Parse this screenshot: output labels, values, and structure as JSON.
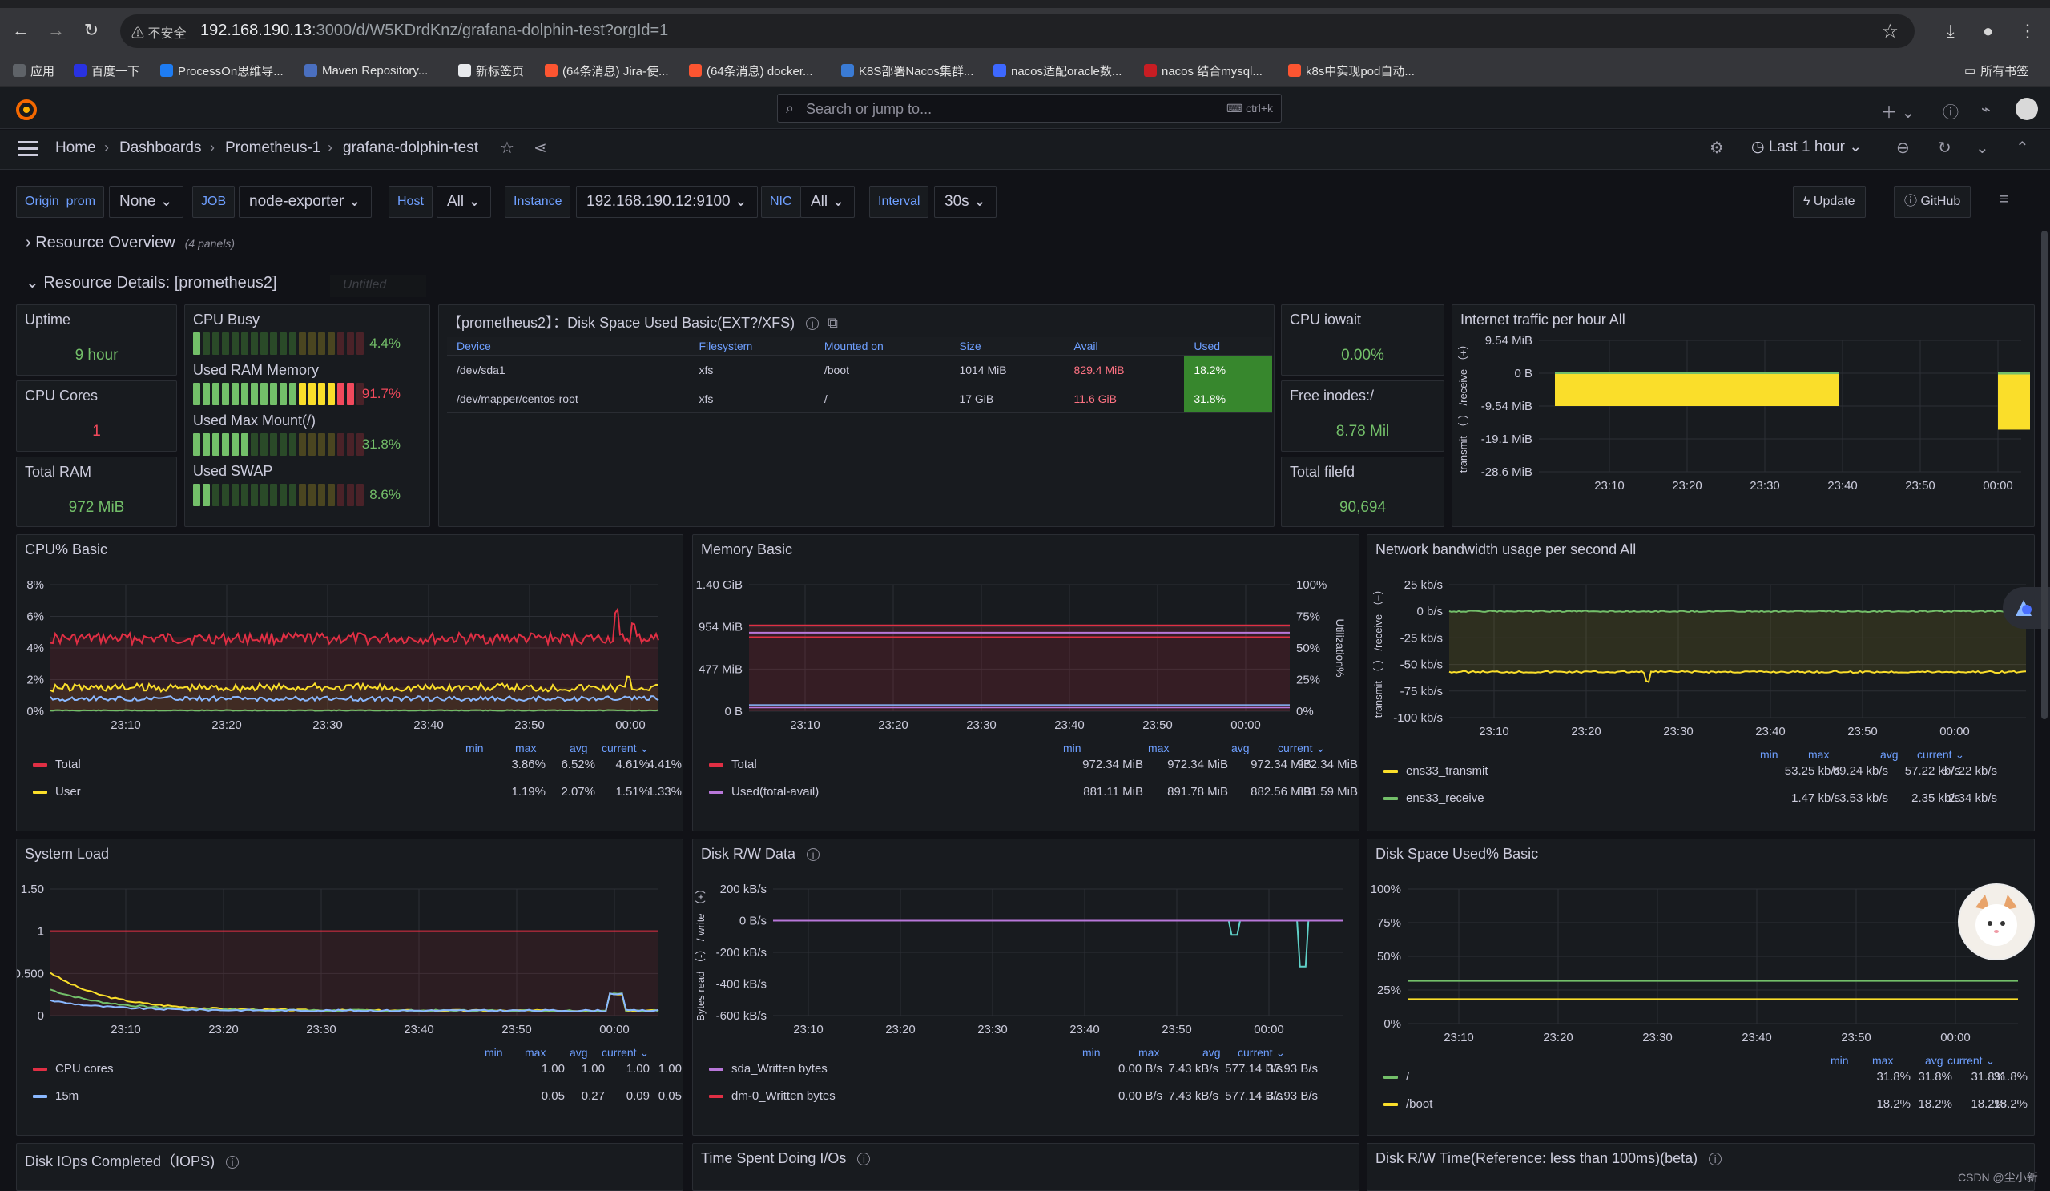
{
  "browser": {
    "insecure_label": "不安全",
    "url_host": "192.168.190.13",
    "url_rest": ":3000/d/W5KDrdKnz/grafana-dolphin-test?orgId=1",
    "bookmarks": [
      {
        "label": "应用",
        "icon": "apps-grid-icon",
        "color": "#5f6368"
      },
      {
        "label": "百度一下",
        "icon": "baidu-icon",
        "color": "#2932e1"
      },
      {
        "label": "ProcessOn思维导...",
        "icon": "processon-icon",
        "color": "#1e7cf2"
      },
      {
        "label": "Maven Repository...",
        "icon": "maven-icon",
        "color": "#4a6fbf"
      },
      {
        "label": "新标签页",
        "icon": "globe-icon",
        "color": "#e8eaed"
      },
      {
        "label": "(64条消息) Jira-使...",
        "icon": "csdn-icon",
        "color": "#fc5531"
      },
      {
        "label": "(64条消息) docker...",
        "icon": "csdn-icon",
        "color": "#fc5531"
      },
      {
        "label": "K8S部署Nacos集群...",
        "icon": "k8s-icon",
        "color": "#3a7bd5"
      },
      {
        "label": "nacos适配oracle数...",
        "icon": "diamond-icon",
        "color": "#3d68ff"
      },
      {
        "label": "nacos 结合mysql...",
        "icon": "51cto-icon",
        "color": "#c71d23"
      },
      {
        "label": "k8s中实现pod自动...",
        "icon": "csdn-icon",
        "color": "#fc5531"
      }
    ],
    "all_bookmarks": "所有书签"
  },
  "grafana": {
    "search_placeholder": "Search or jump to...",
    "search_shortcut": "ctrl+k",
    "breadcrumb": [
      "Home",
      "Dashboards",
      "Prometheus-1",
      "grafana-dolphin-test"
    ],
    "time_range": "Last 1 hour",
    "variables": [
      {
        "label": "Origin_prom",
        "value": "None"
      },
      {
        "label": "JOB",
        "value": "node-exporter"
      },
      {
        "label": "Host",
        "value": "All"
      },
      {
        "label": "Instance",
        "value": "192.168.190.12:9100"
      },
      {
        "label": "NIC",
        "value": "All"
      },
      {
        "label": "Interval",
        "value": "30s"
      }
    ],
    "update_btn": "Update",
    "github_btn": "GitHub",
    "row1_title": "Resource Overview",
    "row1_count": "(4 panels)",
    "row2_title": "Resource Details: [prometheus2]",
    "row2_ghost": "Untitled"
  },
  "panels": {
    "uptime": {
      "title": "Uptime",
      "value": "9 hour"
    },
    "cpu_cores": {
      "title": "CPU Cores",
      "value": "1"
    },
    "total_ram": {
      "title": "Total RAM",
      "value": "972 MiB"
    },
    "gauges": [
      {
        "label": "CPU Busy",
        "value": "4.4%",
        "fill": 0.044,
        "color": "#73bf69"
      },
      {
        "label": "Used RAM Memory",
        "value": "91.7%",
        "fill": 0.917,
        "color": "#f2495c"
      },
      {
        "label": "Used Max Mount(/)",
        "value": "31.8%",
        "fill": 0.318,
        "color": "#73bf69"
      },
      {
        "label": "Used SWAP",
        "value": "8.6%",
        "fill": 0.086,
        "color": "#73bf69"
      }
    ],
    "disk_table": {
      "title": "【prometheus2】：Disk Space Used Basic(EXT?/XFS)",
      "columns": [
        "Device",
        "Filesystem",
        "Mounted on",
        "Size",
        "Avail",
        "Used"
      ],
      "rows": [
        [
          "/dev/sda1",
          "xfs",
          "/boot",
          "1014 MiB",
          "829.4 MiB",
          "18.2%"
        ],
        [
          "/dev/mapper/centos-root",
          "xfs",
          "/",
          "17 GiB",
          "11.6 GiB",
          "31.8%"
        ]
      ]
    },
    "cpu_iowait": {
      "title": "CPU iowait",
      "value": "0.00%"
    },
    "free_inodes": {
      "title": "Free inodes:/",
      "value": "8.78 Mil"
    },
    "total_filefd": {
      "title": "Total filefd",
      "value": "90,694"
    },
    "internet_traffic": {
      "title": "Internet traffic per hour All"
    },
    "cpu_basic": {
      "title": "CPU% Basic"
    },
    "memory_basic": {
      "title": "Memory Basic"
    },
    "network_bw": {
      "title": "Network bandwidth usage per second All"
    },
    "system_load": {
      "title": "System Load"
    },
    "disk_rw": {
      "title": "Disk R/W Data"
    },
    "disk_space_used": {
      "title": "Disk Space Used% Basic"
    },
    "disk_iops": {
      "title": "Disk IOps Completed（IOPS)"
    },
    "time_io": {
      "title": "Time Spent Doing I/Os"
    },
    "disk_rw_time": {
      "title": "Disk R/W Time(Reference: less than 100ms)(beta)"
    },
    "legend_cols": [
      "min",
      "max",
      "avg",
      "current"
    ]
  },
  "chart_data": [
    {
      "type": "bar",
      "panel": "Internet traffic per hour All",
      "ylabel": "transmit （-） /receive （+）",
      "y_ticks": [
        "9.54 MiB",
        "0 B",
        "-9.54 MiB",
        "-19.1 MiB",
        "-28.6 MiB"
      ],
      "x_ticks": [
        "23:10",
        "23:20",
        "23:30",
        "23:40",
        "23:50",
        "00:00"
      ],
      "series": [
        {
          "color": "#fade2a",
          "bars": [
            {
              "x_start": "23:10",
              "x_end": "23:40",
              "value": -9.54
            },
            {
              "x_start": "00:00",
              "x_end": "00:00",
              "value": -16.4
            }
          ]
        }
      ]
    },
    {
      "type": "line",
      "panel": "CPU% Basic",
      "y_ticks": [
        "8%",
        "6%",
        "4%",
        "2%",
        "0%"
      ],
      "x_ticks": [
        "23:10",
        "23:20",
        "23:30",
        "23:40",
        "23:50",
        "00:00"
      ],
      "series": [
        {
          "name": "Total",
          "color": "#e02f44",
          "min": "3.86%",
          "max": "6.52%",
          "avg": "4.61%",
          "current": "4.41%"
        },
        {
          "name": "User",
          "color": "#fade2a",
          "min": "1.19%",
          "max": "2.07%",
          "avg": "1.51%",
          "current": "1.33%"
        }
      ]
    },
    {
      "type": "line",
      "panel": "Memory Basic",
      "y_ticks": [
        "1.40 GiB",
        "954 MiB",
        "477 MiB",
        "0 B"
      ],
      "y2_ticks": [
        "100%",
        "75%",
        "50%",
        "25%",
        "0%"
      ],
      "y2label": "Utilization%",
      "x_ticks": [
        "23:10",
        "23:20",
        "23:30",
        "23:40",
        "23:50",
        "00:00"
      ],
      "series": [
        {
          "name": "Total",
          "color": "#e02f44",
          "min": "972.34 MiB",
          "max": "972.34 MiB",
          "avg": "972.34 MiB",
          "current": "972.34 MiB"
        },
        {
          "name": "Used(total-avail)",
          "color": "#b877d9",
          "min": "881.11 MiB",
          "max": "891.78 MiB",
          "avg": "882.56 MiB",
          "current": "891.59 MiB"
        }
      ]
    },
    {
      "type": "line",
      "panel": "Network bandwidth usage per second All",
      "ylabel": "transmit （-） /receive （+）",
      "y_ticks": [
        "25 kb/s",
        "0 b/s",
        "-25 kb/s",
        "-50 kb/s",
        "-75 kb/s",
        "-100 kb/s"
      ],
      "x_ticks": [
        "23:10",
        "23:20",
        "23:30",
        "23:40",
        "23:50",
        "00:00"
      ],
      "series": [
        {
          "name": "ens33_transmit",
          "color": "#fade2a",
          "min": "53.25 kb/s",
          "max": "69.24 kb/s",
          "avg": "57.22 kb/s",
          "current": "57.22 kb/s"
        },
        {
          "name": "ens33_receive",
          "color": "#73bf69",
          "min": "1.47 kb/s",
          "max": "3.53 kb/s",
          "avg": "2.35 kb/s",
          "current": "2.34 kb/s"
        }
      ]
    },
    {
      "type": "line",
      "panel": "System Load",
      "y_ticks": [
        "1.50",
        "1",
        "0.500",
        "0"
      ],
      "x_ticks": [
        "23:10",
        "23:20",
        "23:30",
        "23:40",
        "23:50",
        "00:00"
      ],
      "series": [
        {
          "name": "CPU cores",
          "color": "#e02f44",
          "min": "1.00",
          "max": "1.00",
          "avg": "1.00",
          "current": "1.00"
        },
        {
          "name": "15m",
          "color": "#8ab8ff",
          "min": "0.05",
          "max": "0.27",
          "avg": "0.09",
          "current": "0.05"
        }
      ]
    },
    {
      "type": "line",
      "panel": "Disk R/W Data",
      "ylabel": "Bytes read （-） / write （+）",
      "y_ticks": [
        "200 kB/s",
        "0 B/s",
        "-200 kB/s",
        "-400 kB/s",
        "-600 kB/s"
      ],
      "x_ticks": [
        "23:10",
        "23:20",
        "23:30",
        "23:40",
        "23:50",
        "00:00"
      ],
      "series": [
        {
          "name": "sda_Written bytes",
          "color": "#b877d9",
          "min": "0.00 B/s",
          "max": "7.43 kB/s",
          "avg": "577.14 B/s",
          "current": "37.93 B/s"
        },
        {
          "name": "dm-0_Written bytes",
          "color": "#e02f44",
          "min": "0.00 B/s",
          "max": "7.43 kB/s",
          "avg": "577.14 B/s",
          "current": "37.93 B/s"
        }
      ]
    },
    {
      "type": "line",
      "panel": "Disk Space Used% Basic",
      "y_ticks": [
        "100%",
        "75%",
        "50%",
        "25%",
        "0%"
      ],
      "x_ticks": [
        "23:10",
        "23:20",
        "23:30",
        "23:40",
        "23:50",
        "00:00"
      ],
      "series": [
        {
          "name": "/",
          "color": "#73bf69",
          "min": "31.8%",
          "max": "31.8%",
          "avg": "31.8%",
          "current": "31.8%"
        },
        {
          "name": "/boot",
          "color": "#fade2a",
          "min": "18.2%",
          "max": "18.2%",
          "avg": "18.2%",
          "current": "18.2%"
        }
      ]
    }
  ],
  "footer": {
    "watermark": "CSDN @尘小新"
  }
}
